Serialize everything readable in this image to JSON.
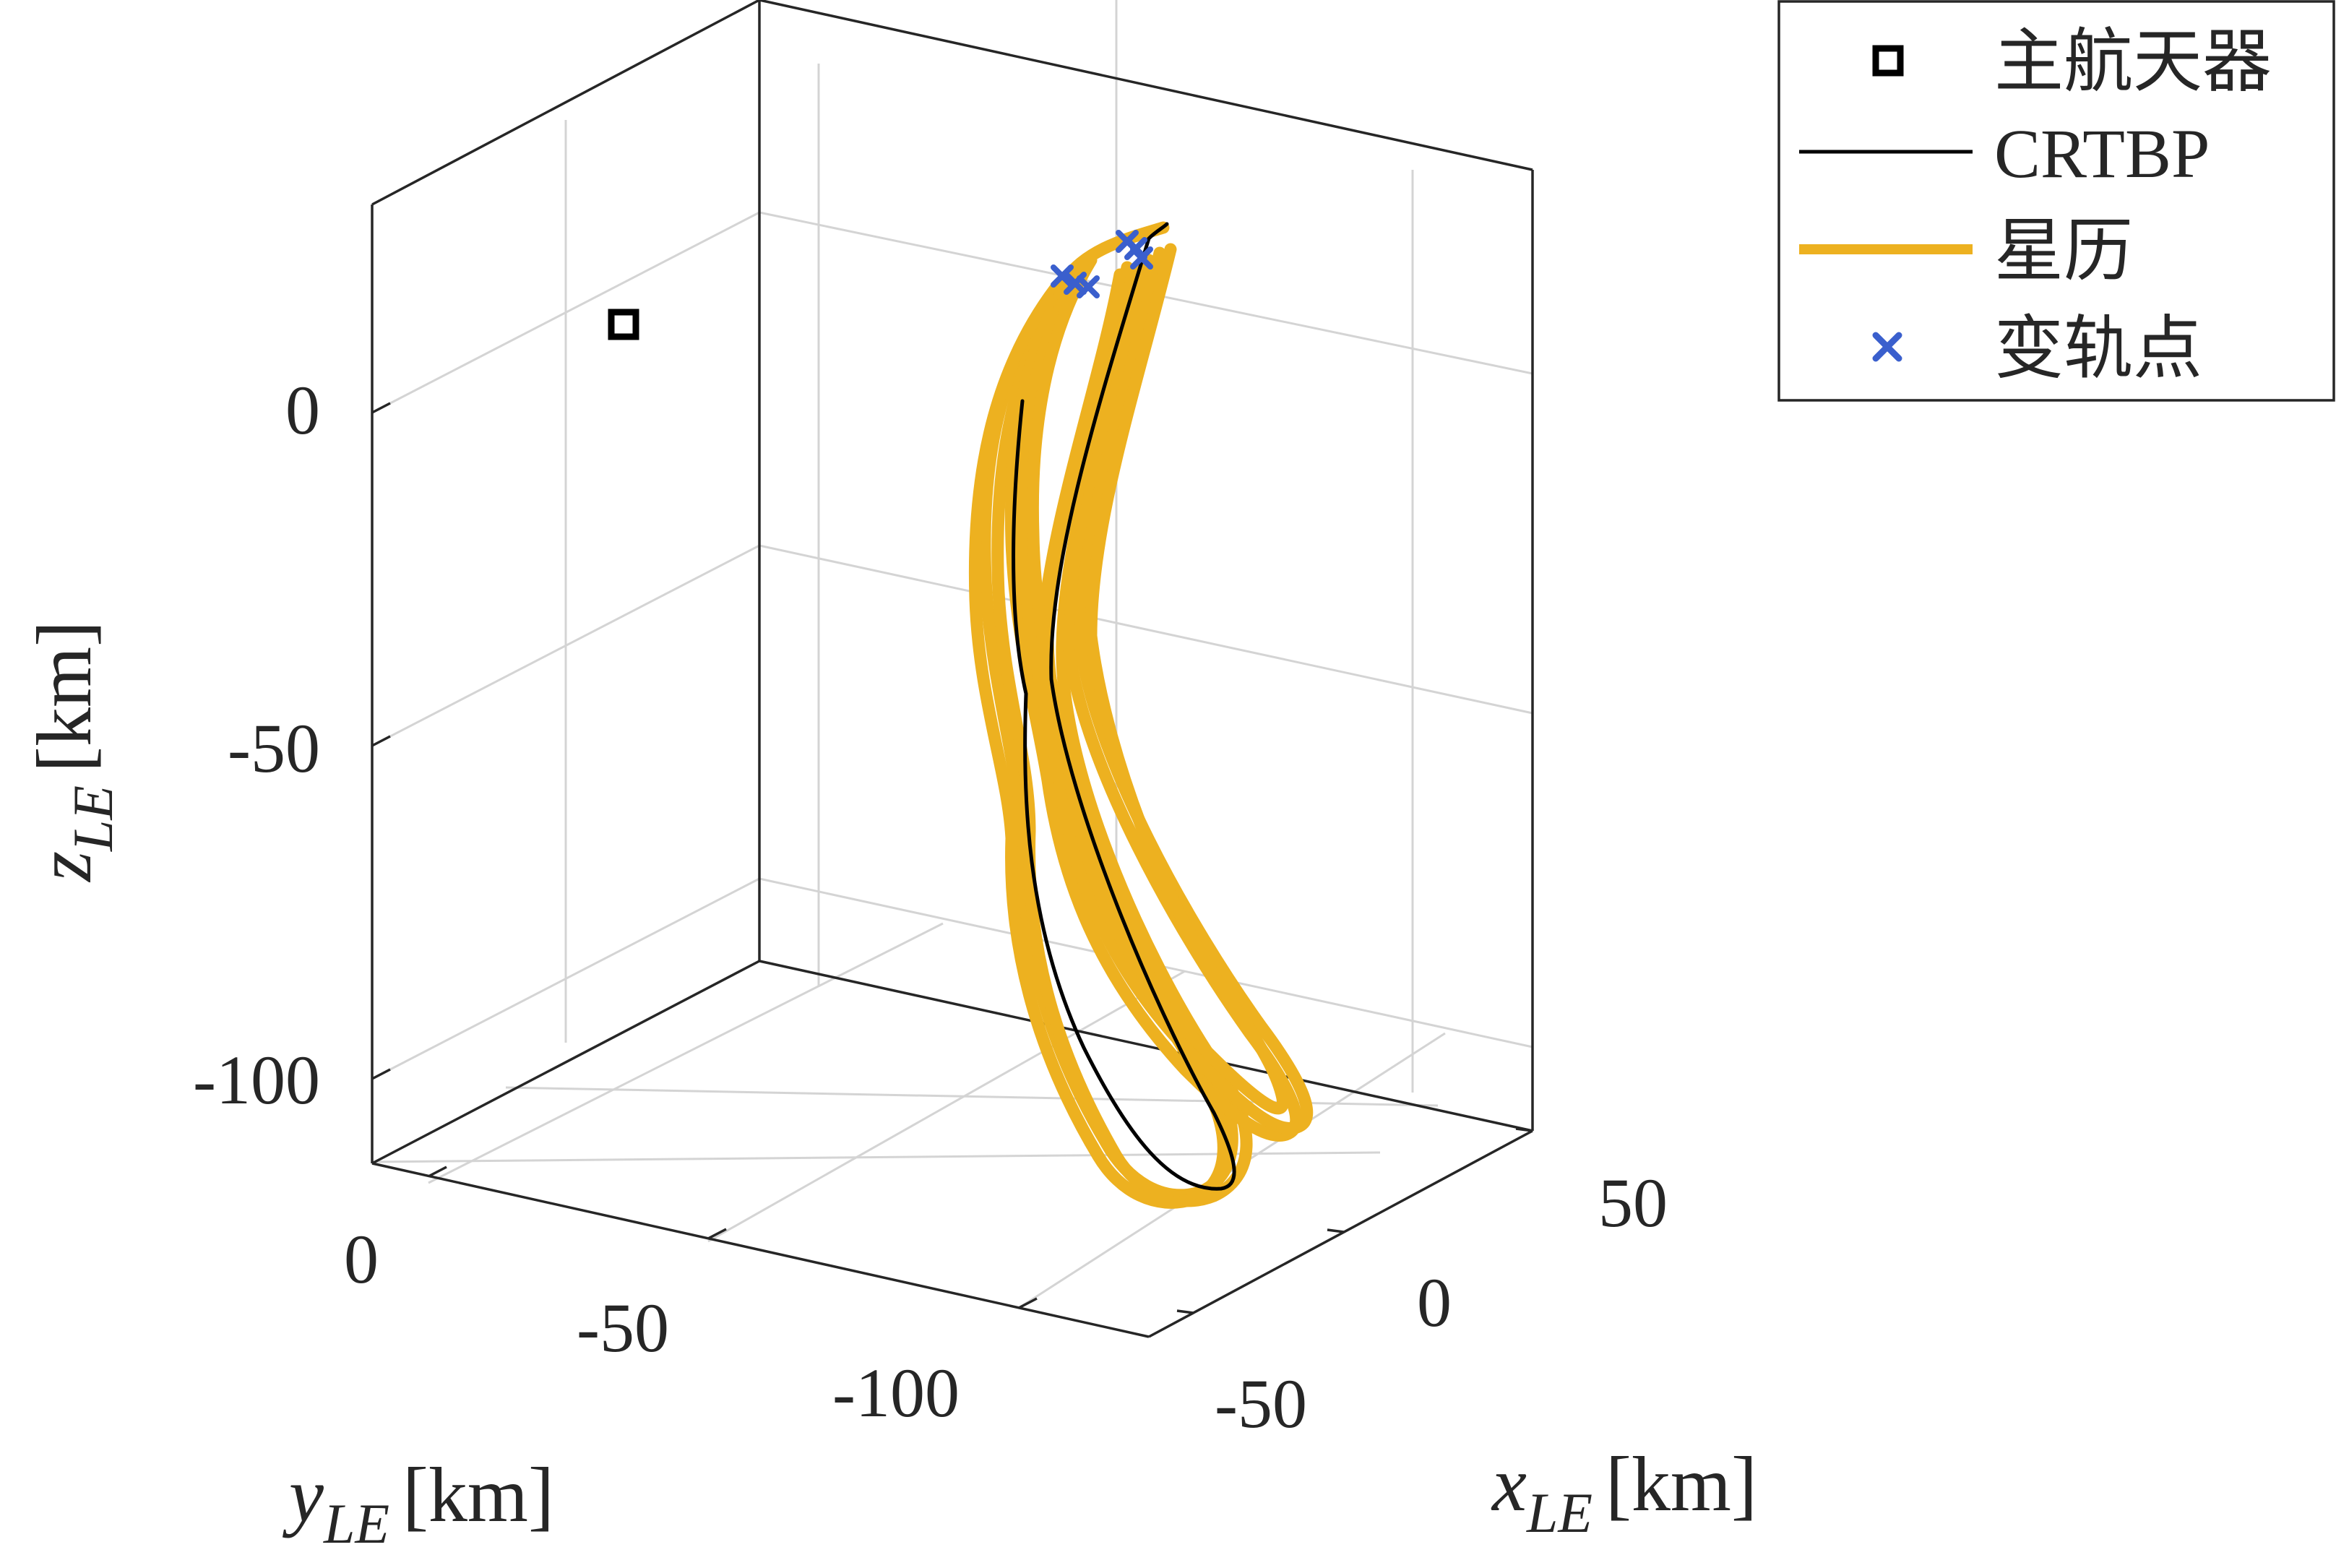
{
  "chart_data": {
    "type": "line",
    "projection": "3d",
    "grid": true,
    "legend_placement": "top-right",
    "axes": {
      "x": {
        "symbol": "x",
        "subscript": "LE",
        "unit": "[km]",
        "ticks": [
          50,
          0,
          -50
        ],
        "tick_labels": [
          "50",
          "0",
          "-50"
        ],
        "range": [
          -70,
          70
        ]
      },
      "y": {
        "symbol": "y",
        "subscript": "LE",
        "unit": "[km]",
        "ticks": [
          0,
          -50,
          -100
        ],
        "tick_labels": [
          "0",
          "-50",
          "-100"
        ],
        "range": [
          10,
          -125
        ]
      },
      "z": {
        "symbol": "z",
        "subscript": "LE",
        "unit": "[km]",
        "ticks": [
          0,
          -50,
          -100
        ],
        "tick_labels": [
          "0",
          "-50",
          "-100"
        ],
        "range": [
          -113,
          31
        ]
      }
    },
    "legend": [
      {
        "label": "主航天器",
        "marker": "square",
        "color": "#000000"
      },
      {
        "label": "CRTBP",
        "marker": "line-thin",
        "color": "#000000"
      },
      {
        "label": "星历",
        "marker": "line-thick",
        "color": "#EDB120"
      },
      {
        "label": "变轨点",
        "marker": "x",
        "color": "#3A5FCD"
      }
    ],
    "series": [
      {
        "name": "主航天器",
        "type": "point",
        "color": "#000000",
        "x": 0,
        "y": 0,
        "z": 0
      },
      {
        "name": "CRTBP",
        "type": "line",
        "color": "#000000",
        "x_range": [
          -8,
          48
        ],
        "y_range": [
          -60,
          -86
        ],
        "z_range": [
          -115,
          26
        ]
      },
      {
        "name": "星历",
        "type": "line",
        "color": "#EDB120",
        "x_range": [
          -25,
          60
        ],
        "y_range": [
          -55,
          -100
        ],
        "z_range": [
          -120,
          28
        ]
      },
      {
        "name": "变轨点",
        "type": "scatter",
        "color": "#3A5FCD",
        "points": [
          {
            "x": 8,
            "y": -68,
            "z": 23
          },
          {
            "x": 10,
            "y": -69,
            "z": 22
          },
          {
            "x": 12,
            "y": -70,
            "z": 21
          },
          {
            "x": 25,
            "y": -80,
            "z": 26
          },
          {
            "x": 27,
            "y": -81,
            "z": 25
          },
          {
            "x": 29,
            "y": -82,
            "z": 24
          }
        ]
      }
    ]
  }
}
